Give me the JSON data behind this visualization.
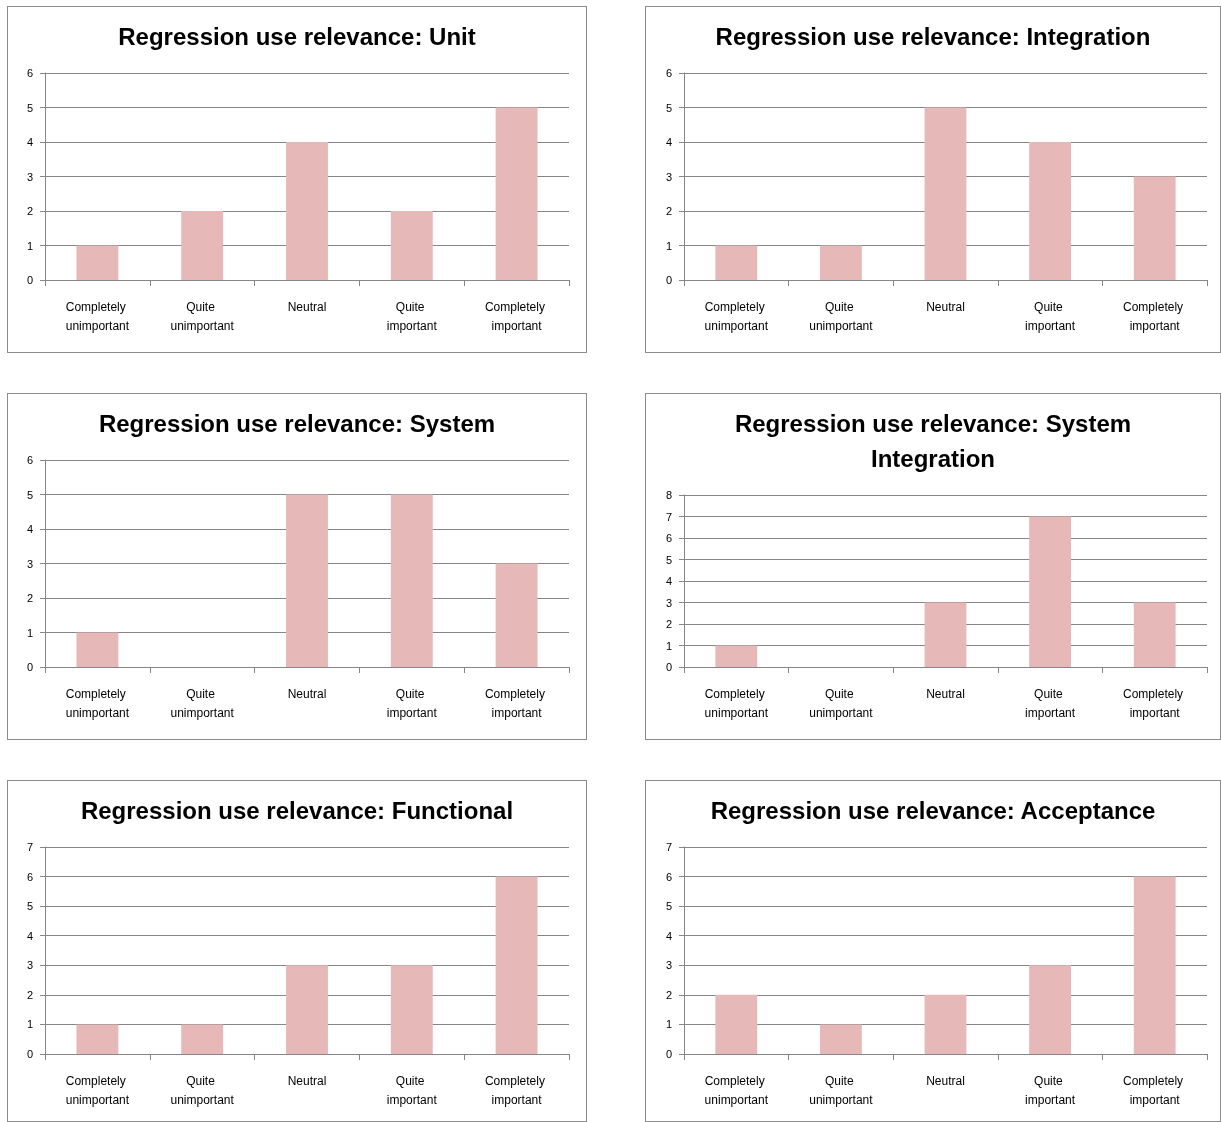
{
  "chart_data": [
    {
      "type": "bar",
      "title": "Regression use relevance: Unit",
      "categories": [
        "Completely unimportant",
        "Quite unimportant",
        "Neutral",
        "Quite important",
        "Completely important"
      ],
      "values": [
        1,
        2,
        4,
        2,
        5
      ],
      "color": "#e6b9b8",
      "ylim": [
        0,
        6
      ],
      "yticks": [
        0,
        1,
        2,
        3,
        4,
        5,
        6
      ],
      "grid": "y"
    },
    {
      "type": "bar",
      "title": "Regression use relevance: Integration",
      "categories": [
        "Completely unimportant",
        "Quite unimportant",
        "Neutral",
        "Quite important",
        "Completely important"
      ],
      "values": [
        1,
        1,
        5,
        4,
        3
      ],
      "color": "#e6b9b8",
      "ylim": [
        0,
        6
      ],
      "yticks": [
        0,
        1,
        2,
        3,
        4,
        5,
        6
      ],
      "grid": "y"
    },
    {
      "type": "bar",
      "title": "Regression use relevance: System",
      "categories": [
        "Completely unimportant",
        "Quite unimportant",
        "Neutral",
        "Quite important",
        "Completely important"
      ],
      "values": [
        1,
        0,
        5,
        5,
        3
      ],
      "color": "#e6b9b8",
      "ylim": [
        0,
        6
      ],
      "yticks": [
        0,
        1,
        2,
        3,
        4,
        5,
        6
      ],
      "grid": "y"
    },
    {
      "type": "bar",
      "title": "Regression use relevance: System Integration",
      "categories": [
        "Completely unimportant",
        "Quite unimportant",
        "Neutral",
        "Quite important",
        "Completely important"
      ],
      "values": [
        1,
        0,
        3,
        7,
        3
      ],
      "color": "#e6b9b8",
      "ylim": [
        0,
        8
      ],
      "yticks": [
        0,
        1,
        2,
        3,
        4,
        5,
        6,
        7,
        8
      ],
      "grid": "y"
    },
    {
      "type": "bar",
      "title": "Regression use relevance: Functional",
      "categories": [
        "Completely unimportant",
        "Quite unimportant",
        "Neutral",
        "Quite important",
        "Completely important"
      ],
      "values": [
        1,
        1,
        3,
        3,
        6
      ],
      "color": "#e6b9b8",
      "ylim": [
        0,
        7
      ],
      "yticks": [
        0,
        1,
        2,
        3,
        4,
        5,
        6,
        7
      ],
      "grid": "y"
    },
    {
      "type": "bar",
      "title": "Regression use relevance: Acceptance",
      "categories": [
        "Completely unimportant",
        "Quite unimportant",
        "Neutral",
        "Quite important",
        "Completely important"
      ],
      "values": [
        2,
        1,
        2,
        3,
        6
      ],
      "color": "#e6b9b8",
      "ylim": [
        0,
        7
      ],
      "yticks": [
        0,
        1,
        2,
        3,
        4,
        5,
        6,
        7
      ],
      "grid": "y"
    }
  ]
}
